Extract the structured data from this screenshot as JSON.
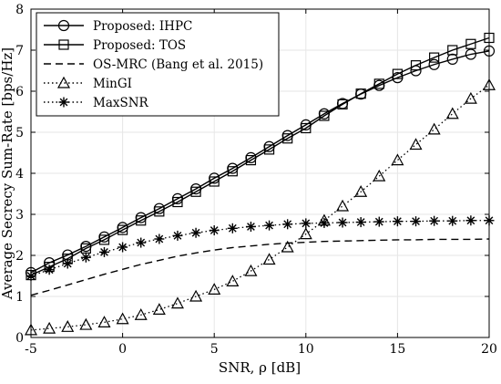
{
  "chart_data": {
    "type": "line",
    "title": "",
    "xlabel": "SNR, ρ [dB]",
    "ylabel": "Average Secrecy Sum-Rate [bps/Hz]",
    "xlim": [
      -5,
      20
    ],
    "ylim": [
      0,
      8
    ],
    "xticks": [
      -5,
      0,
      5,
      10,
      15,
      20
    ],
    "yticks": [
      0,
      1,
      2,
      3,
      4,
      5,
      6,
      7,
      8
    ],
    "grid": true,
    "legend_position": "top-left",
    "x": [
      -5,
      -4,
      -3,
      -2,
      -1,
      0,
      1,
      2,
      3,
      4,
      5,
      6,
      7,
      8,
      9,
      10,
      11,
      12,
      13,
      14,
      15,
      16,
      17,
      18,
      19,
      20
    ],
    "series": [
      {
        "name": "Proposed: IHPC",
        "line": "solid",
        "marker": "circle",
        "values": [
          1.58,
          1.82,
          2.01,
          2.22,
          2.45,
          2.68,
          2.92,
          3.14,
          3.38,
          3.62,
          3.88,
          4.12,
          4.38,
          4.65,
          4.92,
          5.18,
          5.45,
          5.7,
          5.93,
          6.14,
          6.33,
          6.5,
          6.65,
          6.78,
          6.9,
          6.98
        ]
      },
      {
        "name": "Proposed: TOS",
        "line": "solid",
        "marker": "square",
        "values": [
          1.52,
          1.72,
          1.92,
          2.17,
          2.38,
          2.62,
          2.85,
          3.07,
          3.3,
          3.55,
          3.8,
          4.05,
          4.32,
          4.58,
          4.85,
          5.1,
          5.4,
          5.68,
          5.94,
          6.18,
          6.42,
          6.63,
          6.82,
          7.0,
          7.15,
          7.3
        ]
      },
      {
        "name": "OS-MRC (Bang et al. 2015)",
        "line": "dashed",
        "marker": "none",
        "values": [
          1.03,
          1.15,
          1.28,
          1.41,
          1.54,
          1.66,
          1.78,
          1.88,
          1.98,
          2.06,
          2.13,
          2.19,
          2.23,
          2.27,
          2.3,
          2.32,
          2.34,
          2.35,
          2.36,
          2.37,
          2.38,
          2.38,
          2.39,
          2.39,
          2.39,
          2.4
        ]
      },
      {
        "name": "MinGI",
        "line": "dotted",
        "marker": "triangle",
        "values": [
          0.18,
          0.22,
          0.26,
          0.31,
          0.37,
          0.45,
          0.55,
          0.68,
          0.83,
          1.0,
          1.17,
          1.37,
          1.62,
          1.9,
          2.2,
          2.52,
          2.85,
          3.2,
          3.55,
          3.93,
          4.32,
          4.7,
          5.07,
          5.45,
          5.82,
          6.15
        ]
      },
      {
        "name": "MaxSNR",
        "line": "dotted",
        "marker": "star",
        "values": [
          1.5,
          1.65,
          1.8,
          1.95,
          2.08,
          2.2,
          2.31,
          2.4,
          2.48,
          2.55,
          2.61,
          2.66,
          2.7,
          2.73,
          2.76,
          2.78,
          2.79,
          2.8,
          2.81,
          2.82,
          2.83,
          2.83,
          2.84,
          2.84,
          2.85,
          2.85
        ]
      }
    ]
  }
}
